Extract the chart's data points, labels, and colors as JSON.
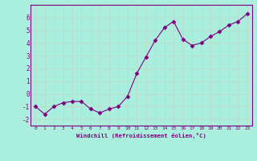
{
  "x": [
    0,
    1,
    2,
    3,
    4,
    5,
    6,
    7,
    8,
    9,
    10,
    11,
    12,
    13,
    14,
    15,
    16,
    17,
    18,
    19,
    20,
    21,
    22,
    23
  ],
  "y": [
    -1.0,
    -1.6,
    -1.0,
    -0.7,
    -0.6,
    -0.6,
    -1.2,
    -1.5,
    -1.2,
    -1.0,
    -0.2,
    1.6,
    2.9,
    4.2,
    5.2,
    5.7,
    4.3,
    3.8,
    4.0,
    4.5,
    4.9,
    5.4,
    5.7,
    6.3
  ],
  "line_color": "#800080",
  "marker": "D",
  "marker_size": 2.5,
  "bg_color": "#aaeedd",
  "grid_color": "#bbddcc",
  "xlabel": "Windchill (Refroidissement éolien,°C)",
  "xlabel_color": "#800080",
  "tick_color": "#800080",
  "ylim": [
    -2.5,
    7.0
  ],
  "xlim": [
    -0.5,
    23.5
  ],
  "yticks": [
    -2,
    -1,
    0,
    1,
    2,
    3,
    4,
    5,
    6
  ],
  "xticks": [
    0,
    1,
    2,
    3,
    4,
    5,
    6,
    7,
    8,
    9,
    10,
    11,
    12,
    13,
    14,
    15,
    16,
    17,
    18,
    19,
    20,
    21,
    22,
    23
  ],
  "figsize": [
    3.2,
    2.0
  ],
  "dpi": 100
}
